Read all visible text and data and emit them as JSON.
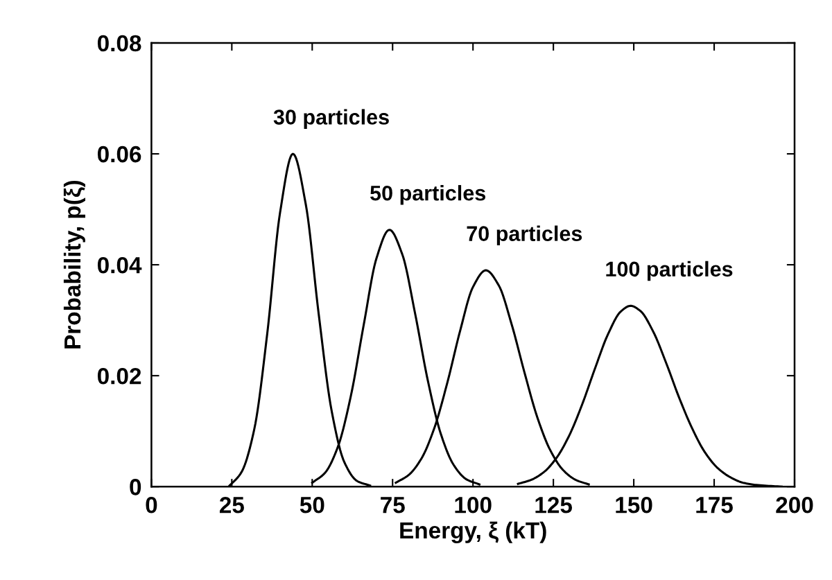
{
  "chart_data": {
    "type": "line",
    "xlabel": "Energy, ξ (kT)",
    "ylabel": "Probability, p(ξ)",
    "xlim": [
      0,
      200
    ],
    "xticks": [
      0,
      25,
      50,
      75,
      100,
      125,
      150,
      175,
      200
    ],
    "ylim": [
      0,
      0.08
    ],
    "yticks": [
      0,
      0.02,
      0.04,
      0.06,
      0.08
    ],
    "grid": false,
    "legend": false,
    "marker": "none",
    "line_style": "solid",
    "series": [
      {
        "name": "30 particles",
        "color": "#000000",
        "x": [
          24,
          28,
          32,
          36,
          40,
          44,
          48,
          52,
          56,
          60,
          64,
          68
        ],
        "values": [
          0,
          0.0026,
          0.0104,
          0.0275,
          0.0494,
          0.06,
          0.0509,
          0.0312,
          0.0138,
          0.0044,
          0.001,
          0.0002
        ]
      },
      {
        "name": "50 particles",
        "color": "#000000",
        "x": [
          50,
          54,
          58,
          62,
          66,
          70,
          74,
          78,
          82,
          86,
          90,
          94,
          98,
          102
        ],
        "values": [
          0.0007,
          0.0025,
          0.0072,
          0.0163,
          0.0291,
          0.0412,
          0.0463,
          0.0419,
          0.0312,
          0.019,
          0.0095,
          0.0039,
          0.0013,
          0.0004
        ]
      },
      {
        "name": "70 particles",
        "color": "#000000",
        "x": [
          76,
          80,
          84,
          88,
          92,
          96,
          100,
          104,
          108,
          112,
          116,
          120,
          124,
          128,
          132,
          136
        ],
        "values": [
          0.0007,
          0.0021,
          0.0051,
          0.0106,
          0.0187,
          0.0281,
          0.036,
          0.039,
          0.0363,
          0.0293,
          0.0206,
          0.0125,
          0.0066,
          0.003,
          0.0012,
          0.0004
        ]
      },
      {
        "name": "100 particles",
        "color": "#000000",
        "x": [
          114,
          118,
          122,
          126,
          130,
          134,
          138,
          142,
          146,
          149,
          152,
          156,
          160,
          164,
          168,
          172,
          176,
          180,
          184,
          188,
          196
        ],
        "values": [
          0.0005,
          0.0012,
          0.0026,
          0.0052,
          0.0093,
          0.0149,
          0.0214,
          0.0275,
          0.0316,
          0.0326,
          0.0317,
          0.028,
          0.0224,
          0.0162,
          0.0107,
          0.0063,
          0.0034,
          0.0017,
          0.0007,
          0.0003,
          0
        ]
      }
    ]
  }
}
